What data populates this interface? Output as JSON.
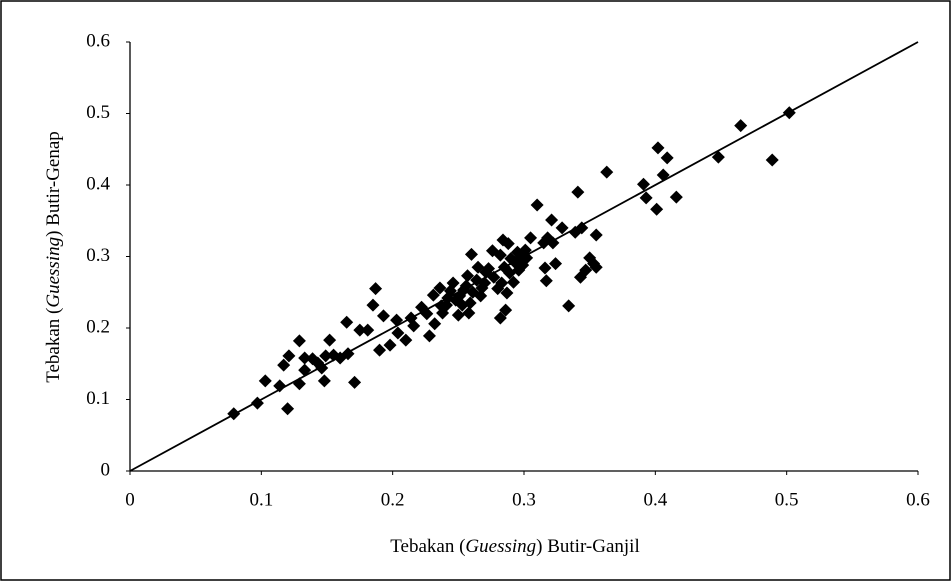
{
  "chart_data": {
    "type": "scatter",
    "x_label": [
      "Tebakan (",
      "Guessing",
      ") Butir-Ganjil"
    ],
    "y_label": [
      "Tebakan (",
      "Guessing",
      ") Butir-Genap"
    ],
    "xlim": [
      0,
      0.6
    ],
    "ylim": [
      0,
      0.6
    ],
    "xticks": [
      0,
      0.1,
      0.2,
      0.3,
      0.4,
      0.5,
      0.6
    ],
    "yticks": [
      0,
      0.1,
      0.2,
      0.3,
      0.4,
      0.5,
      0.6
    ],
    "color": "#000000",
    "reference_line": {
      "x": [
        0,
        0.6
      ],
      "y": [
        0,
        0.6
      ]
    },
    "x": [
      0.079,
      0.097,
      0.103,
      0.114,
      0.12,
      0.117,
      0.121,
      0.129,
      0.129,
      0.133,
      0.133,
      0.139,
      0.143,
      0.146,
      0.148,
      0.149,
      0.152,
      0.155,
      0.16,
      0.165,
      0.166,
      0.171,
      0.175,
      0.181,
      0.185,
      0.187,
      0.19,
      0.193,
      0.198,
      0.203,
      0.204,
      0.21,
      0.214,
      0.216,
      0.222,
      0.226,
      0.228,
      0.231,
      0.232,
      0.236,
      0.237,
      0.238,
      0.241,
      0.242,
      0.244,
      0.246,
      0.248,
      0.25,
      0.251,
      0.253,
      0.254,
      0.256,
      0.257,
      0.258,
      0.259,
      0.26,
      0.261,
      0.264,
      0.265,
      0.267,
      0.268,
      0.27,
      0.271,
      0.273,
      0.276,
      0.277,
      0.28,
      0.282,
      0.282,
      0.283,
      0.284,
      0.285,
      0.286,
      0.287,
      0.288,
      0.289,
      0.29,
      0.292,
      0.293,
      0.295,
      0.296,
      0.298,
      0.299,
      0.301,
      0.302,
      0.305,
      0.31,
      0.315,
      0.316,
      0.317,
      0.318,
      0.321,
      0.322,
      0.324,
      0.329,
      0.334,
      0.339,
      0.341,
      0.343,
      0.344,
      0.347,
      0.35,
      0.353,
      0.355,
      0.355,
      0.363,
      0.391,
      0.393,
      0.401,
      0.402,
      0.406,
      0.409,
      0.416,
      0.448,
      0.465,
      0.489,
      0.502
    ],
    "values": [
      0.08,
      0.095,
      0.126,
      0.119,
      0.087,
      0.148,
      0.161,
      0.182,
      0.122,
      0.141,
      0.158,
      0.157,
      0.151,
      0.144,
      0.126,
      0.161,
      0.183,
      0.162,
      0.158,
      0.208,
      0.164,
      0.124,
      0.197,
      0.197,
      0.232,
      0.255,
      0.169,
      0.217,
      0.176,
      0.211,
      0.193,
      0.183,
      0.214,
      0.203,
      0.229,
      0.22,
      0.189,
      0.246,
      0.206,
      0.256,
      0.231,
      0.221,
      0.232,
      0.242,
      0.252,
      0.263,
      0.239,
      0.218,
      0.245,
      0.232,
      0.253,
      0.259,
      0.273,
      0.221,
      0.235,
      0.303,
      0.25,
      0.267,
      0.285,
      0.245,
      0.256,
      0.263,
      0.278,
      0.283,
      0.308,
      0.271,
      0.255,
      0.302,
      0.214,
      0.263,
      0.323,
      0.285,
      0.225,
      0.249,
      0.318,
      0.277,
      0.297,
      0.264,
      0.292,
      0.306,
      0.281,
      0.298,
      0.288,
      0.309,
      0.298,
      0.326,
      0.372,
      0.319,
      0.284,
      0.266,
      0.326,
      0.351,
      0.319,
      0.29,
      0.34,
      0.231,
      0.334,
      0.39,
      0.271,
      0.34,
      0.281,
      0.298,
      0.29,
      0.33,
      0.285,
      0.418,
      0.401,
      0.382,
      0.366,
      0.452,
      0.414,
      0.438,
      0.383,
      0.439,
      0.483,
      0.435,
      0.501
    ]
  }
}
